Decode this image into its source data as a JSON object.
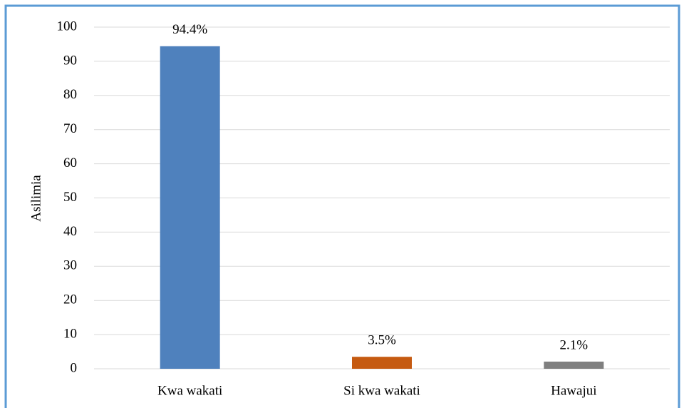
{
  "chart_data": {
    "type": "bar",
    "y_label": "Asilimia",
    "categories": [
      "Kwa wakati",
      "Si kwa wakati",
      "Hawajui"
    ],
    "values": [
      94.4,
      3.5,
      2.1
    ],
    "value_labels": [
      "94.4%",
      "3.5%",
      "2.1%"
    ],
    "colors": [
      "#4f81bd",
      "#c55a11",
      "#7f7f7f"
    ],
    "ylim": [
      0,
      100
    ],
    "yticks": [
      0,
      10,
      20,
      30,
      40,
      50,
      60,
      70,
      80,
      90,
      100
    ],
    "grid": true
  }
}
